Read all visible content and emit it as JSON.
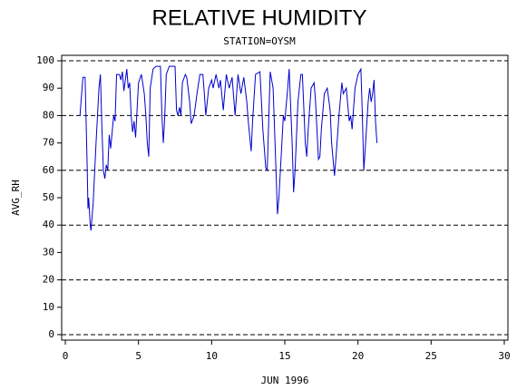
{
  "chart_data": {
    "type": "line",
    "title": "RELATIVE HUMIDITY",
    "subtitle": "STATION=OYSM",
    "x_label": "JUN 1996",
    "y_label": "AVG_RH",
    "xlim": [
      -0.25,
      30.25
    ],
    "ylim": [
      -2,
      102
    ],
    "xticks": [
      0,
      5,
      10,
      15,
      20,
      25,
      30
    ],
    "yticks": [
      0,
      10,
      20,
      30,
      40,
      50,
      60,
      70,
      80,
      90,
      100
    ],
    "ygrid": [
      0,
      20,
      40,
      60,
      80,
      100
    ],
    "x": [
      1.0,
      1.2,
      1.35,
      1.5,
      1.55,
      1.6,
      1.7,
      1.75,
      1.9,
      2.1,
      2.3,
      2.4,
      2.5,
      2.6,
      2.7,
      2.8,
      2.9,
      3.0,
      3.1,
      3.3,
      3.4,
      3.5,
      3.7,
      3.8,
      3.9,
      4.0,
      4.2,
      4.3,
      4.4,
      4.5,
      4.6,
      4.7,
      4.8,
      5.0,
      5.2,
      5.4,
      5.5,
      5.6,
      5.7,
      5.8,
      6.0,
      6.2,
      6.5,
      6.6,
      6.7,
      6.8,
      6.9,
      7.1,
      7.5,
      7.6,
      7.7,
      7.8,
      7.9,
      8.0,
      8.2,
      8.3,
      8.5,
      8.6,
      8.8,
      9.0,
      9.2,
      9.4,
      9.5,
      9.6,
      9.7,
      9.8,
      10.0,
      10.1,
      10.3,
      10.5,
      10.6,
      10.8,
      11.0,
      11.2,
      11.4,
      11.6,
      11.8,
      12.0,
      12.2,
      12.4,
      12.5,
      12.7,
      12.8,
      13.0,
      13.3,
      13.5,
      13.7,
      13.8,
      14.0,
      14.2,
      14.4,
      14.5,
      14.6,
      14.8,
      14.9,
      15.0,
      15.2,
      15.3,
      15.5,
      15.6,
      15.7,
      15.9,
      16.1,
      16.2,
      16.4,
      16.5,
      16.6,
      16.8,
      17.0,
      17.1,
      17.3,
      17.4,
      17.5,
      17.7,
      17.9,
      18.1,
      18.2,
      18.4,
      18.5,
      18.7,
      18.9,
      19.0,
      19.2,
      19.4,
      19.5,
      19.6,
      19.8,
      20.0,
      20.2,
      20.3,
      20.4,
      20.5,
      20.7,
      20.8,
      20.9,
      21.0,
      21.1,
      21.2,
      21.3
    ],
    "series": [
      {
        "color": "#0000cc",
        "values": [
          80,
          94,
          94,
          60,
          46,
          50,
          40,
          38,
          48,
          70,
          90,
          95,
          75,
          60,
          57,
          62,
          60,
          73,
          68,
          80,
          78,
          95,
          95,
          93,
          96,
          89,
          97,
          90,
          92,
          80,
          74,
          78,
          72,
          92,
          95,
          88,
          80,
          70,
          65,
          90,
          97,
          98,
          98,
          80,
          70,
          80,
          95,
          98,
          98,
          82,
          80,
          83,
          80,
          92,
          95,
          94,
          85,
          77,
          80,
          88,
          95,
          95,
          88,
          80,
          85,
          90,
          93,
          90,
          95,
          90,
          93,
          82,
          95,
          90,
          94,
          80,
          95,
          88,
          94,
          85,
          78,
          67,
          78,
          95,
          96,
          75,
          61,
          60,
          96,
          90,
          60,
          44,
          50,
          70,
          80,
          78,
          90,
          97,
          70,
          52,
          60,
          85,
          95,
          95,
          70,
          65,
          75,
          90,
          92,
          85,
          64,
          65,
          75,
          88,
          90,
          82,
          70,
          58,
          65,
          80,
          92,
          88,
          90,
          78,
          80,
          75,
          90,
          95,
          97,
          80,
          60,
          68,
          85,
          90,
          85,
          88,
          93,
          78,
          70
        ]
      }
    ]
  }
}
